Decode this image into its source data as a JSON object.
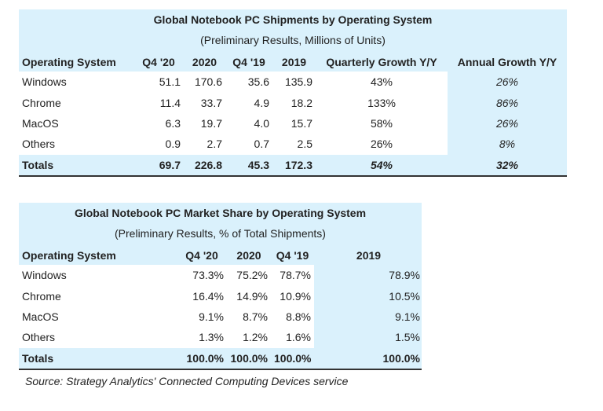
{
  "table1": {
    "title": "Global Notebook PC Shipments by Operating System",
    "subtitle": "(Preliminary Results, Millions of Units)",
    "header": [
      "Operating System",
      "Q4 '20",
      "2020",
      "Q4 '19",
      "2019",
      "Quarterly Growth Y/Y",
      "Annual Growth Y/Y"
    ],
    "rows": [
      [
        "Windows",
        "51.1",
        "170.6",
        "35.6",
        "135.9",
        "43%",
        "26%"
      ],
      [
        "Chrome",
        "11.4",
        "33.7",
        "4.9",
        "18.2",
        "133%",
        "86%"
      ],
      [
        "MacOS",
        "6.3",
        "19.7",
        "4.0",
        "15.7",
        "58%",
        "26%"
      ],
      [
        "Others",
        "0.9",
        "2.7",
        "0.7",
        "2.5",
        "26%",
        "8%"
      ]
    ],
    "totals": [
      "Totals",
      "69.7",
      "226.8",
      "45.3",
      "172.3",
      "54%",
      "32%"
    ]
  },
  "table2": {
    "title": "Global Notebook PC Market Share by Operating System",
    "subtitle": "(Preliminary Results, % of Total Shipments)",
    "header": [
      "Operating System",
      "Q4 '20",
      "2020",
      "Q4 '19",
      "2019"
    ],
    "rows": [
      [
        "Windows",
        "73.3%",
        "75.2%",
        "78.7%",
        "78.9%"
      ],
      [
        "Chrome",
        "16.4%",
        "14.9%",
        "10.9%",
        "10.5%"
      ],
      [
        "MacOS",
        "9.1%",
        "8.7%",
        "8.8%",
        "9.1%"
      ],
      [
        "Others",
        "1.3%",
        "1.2%",
        "1.6%",
        "1.5%"
      ]
    ],
    "totals": [
      "Totals",
      "100.0%",
      "100.0%",
      "100.0%",
      "100.0%"
    ]
  },
  "source": "Source: Strategy Analytics' Connected Computing Devices service"
}
